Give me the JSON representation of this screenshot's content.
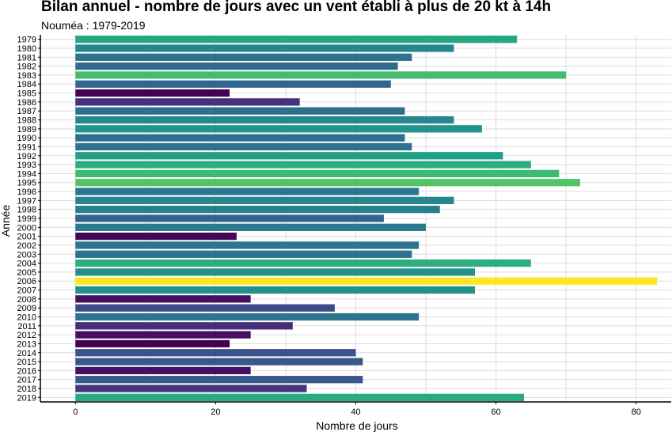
{
  "chart_data": {
    "type": "bar",
    "orientation": "horizontal",
    "title": "Bilan annuel - nombre de jours avec un vent établi à plus de 20 kt à 14h",
    "subtitle": "Nouméa : 1979-2019",
    "xlabel": "Nombre de jours",
    "ylabel": "Année",
    "xlim": [
      -5,
      85
    ],
    "xticks": [
      0,
      20,
      40,
      60,
      80
    ],
    "grid": true,
    "color_scale": "viridis",
    "categories": [
      "1979",
      "1980",
      "1981",
      "1982",
      "1983",
      "1984",
      "1985",
      "1986",
      "1987",
      "1988",
      "1989",
      "1990",
      "1991",
      "1992",
      "1993",
      "1994",
      "1995",
      "1996",
      "1997",
      "1998",
      "1999",
      "2000",
      "2001",
      "2002",
      "2003",
      "2004",
      "2005",
      "2006",
      "2007",
      "2008",
      "2009",
      "2010",
      "2011",
      "2012",
      "2013",
      "2014",
      "2015",
      "2016",
      "2017",
      "2018",
      "2019"
    ],
    "values": [
      63,
      54,
      48,
      46,
      70,
      45,
      22,
      32,
      47,
      54,
      58,
      47,
      48,
      61,
      65,
      69,
      72,
      49,
      54,
      52,
      44,
      50,
      23,
      49,
      48,
      65,
      57,
      83,
      57,
      25,
      37,
      49,
      31,
      25,
      22,
      40,
      41,
      25,
      41,
      33,
      64
    ]
  }
}
